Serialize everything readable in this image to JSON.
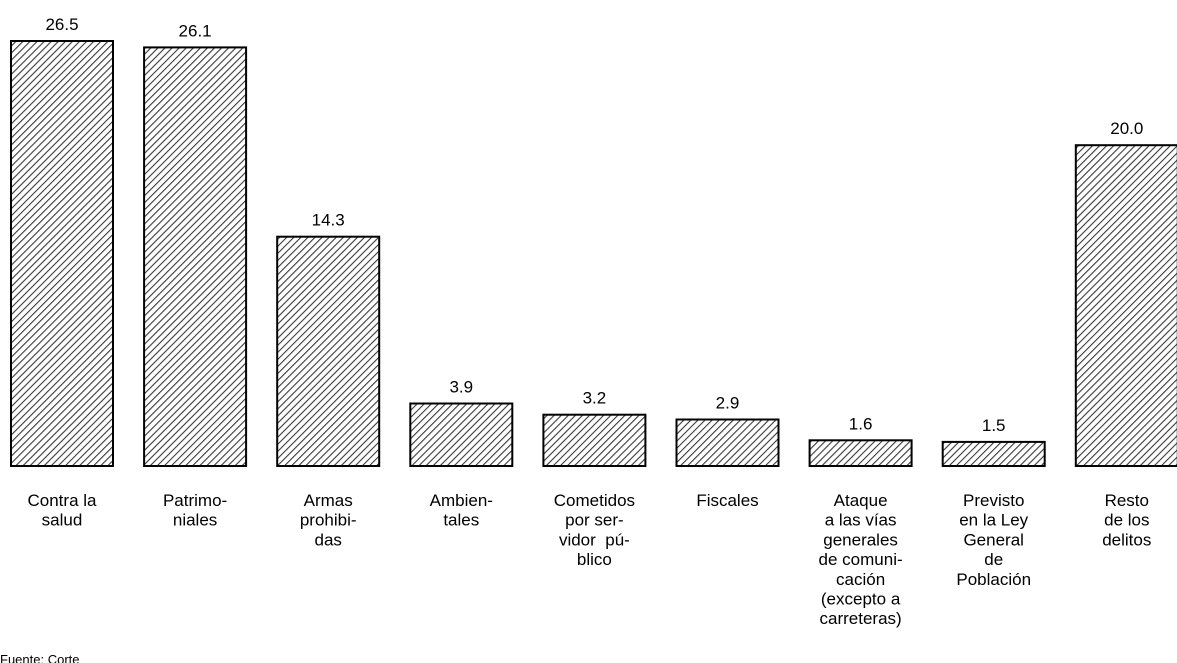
{
  "chart_data": {
    "type": "bar",
    "categories": [
      [
        "Contra la",
        "salud"
      ],
      [
        "Patrimo-",
        "niales"
      ],
      [
        "Armas",
        "prohibi-",
        "das"
      ],
      [
        "Ambien-",
        "tales"
      ],
      [
        "Cometidos",
        "por ser-",
        "vidor  pú-",
        "blico"
      ],
      [
        "Fiscales"
      ],
      [
        "Ataque",
        "a las vías",
        "generales",
        "de comuni-",
        "cación",
        "(excepto a",
        "carreteras)"
      ],
      [
        "Previsto",
        "en la Ley",
        "General",
        "de",
        "Población"
      ],
      [
        "Resto",
        "de los",
        "delitos"
      ]
    ],
    "values": [
      26.5,
      26.1,
      14.3,
      3.9,
      3.2,
      2.9,
      1.6,
      1.5,
      20.0
    ],
    "value_labels": [
      "26.5",
      "26.1",
      "14.3",
      "3.9",
      "3.2",
      "2.9",
      "1.6",
      "1.5",
      "20.0"
    ],
    "ylim": [
      0,
      26.5
    ],
    "grid": false,
    "legend": "none",
    "title": "",
    "xlabel": "",
    "ylabel": "",
    "colors": {
      "bar_fill": "#ffffff",
      "hatch": "#3a3a3a",
      "bar_stroke": "#000000",
      "text": "#000000"
    },
    "footnote": "Fuente: Corte"
  }
}
